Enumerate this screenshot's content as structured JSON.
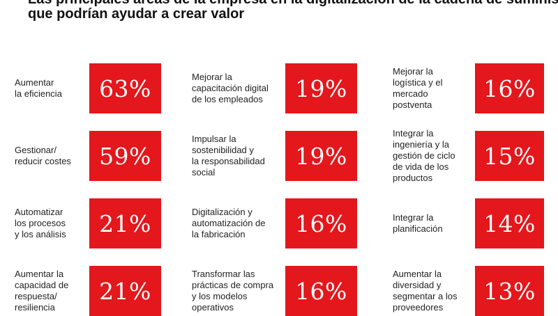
{
  "title": {
    "line1": "Las principales áreas de la empresa en la digitalización de la cadena de suministro",
    "line2": "que podrían ayudar a crear valor"
  },
  "chart_data": {
    "type": "table",
    "accent_color": "#e3171c",
    "items": [
      {
        "label": "Aumentar\nla eficiencia",
        "value": 63,
        "display": "63%"
      },
      {
        "label": "Gestionar/\nreducir costes",
        "value": 59,
        "display": "59%"
      },
      {
        "label": "Automatizar\nlos procesos\ny los análisis",
        "value": 21,
        "display": "21%"
      },
      {
        "label": "Aumentar la\ncapacidad de\nrespuesta/\nresiliencia",
        "value": 21,
        "display": "21%"
      },
      {
        "label": "Mejorar la\ncapacitación digital\nde los empleados",
        "value": 19,
        "display": "19%"
      },
      {
        "label": "Impulsar la\nsostenibilidad y\nla responsabilidad\nsocial",
        "value": 19,
        "display": "19%"
      },
      {
        "label": "Digitalización y\nautomatización de\nla fabricación",
        "value": 16,
        "display": "16%"
      },
      {
        "label": "Transformar las\nprácticas de compra\ny los modelos\noperativos",
        "value": 16,
        "display": "16%"
      },
      {
        "label": "Mejorar la\nlogística y el\nmercado\npostventa",
        "value": 16,
        "display": "16%"
      },
      {
        "label": "Integrar la\ningeniería y la\ngestión de ciclo\nde vida de los\nproductos",
        "value": 15,
        "display": "15%"
      },
      {
        "label": "Integrar la\nplanificación",
        "value": 14,
        "display": "14%"
      },
      {
        "label": "Aumentar la\ndiversidad y\nsegmentar a los\nproveedores",
        "value": 13,
        "display": "13%"
      }
    ]
  }
}
